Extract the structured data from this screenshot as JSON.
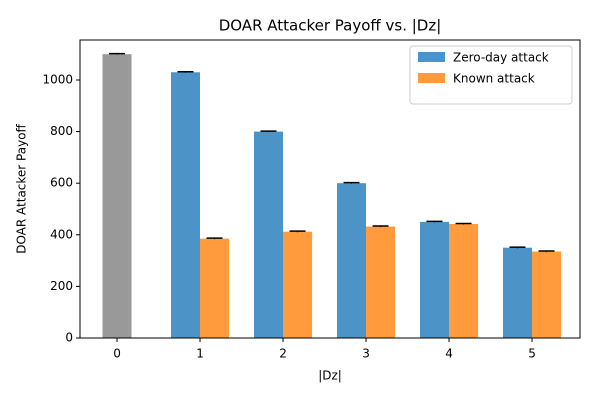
{
  "chart_data": {
    "type": "bar",
    "title": "DOAR Attacker Payoff vs. |Dz|",
    "x_label": "|Dz|",
    "y_label": "DOAR Attacker Payoff",
    "categories": [
      "0",
      "1",
      "2",
      "3",
      "4",
      "5"
    ],
    "baseline_value": 1100,
    "baseline_error": 2,
    "baseline_color": "#999999",
    "series": [
      {
        "name": "Zero-day attack",
        "color": "#4c94c8",
        "values": [
          null,
          1030,
          800,
          600,
          450,
          350
        ],
        "errors": [
          null,
          2,
          2,
          2,
          2,
          2
        ]
      },
      {
        "name": "Known attack",
        "color": "#ff9a3d",
        "values": [
          null,
          385,
          412,
          432,
          442,
          335
        ],
        "errors": [
          null,
          2,
          2,
          2,
          2,
          2
        ]
      }
    ],
    "xlim": [
      -0.446,
      5.578
    ],
    "ylim": [
      0,
      1155
    ],
    "yticks": [
      0,
      200,
      400,
      600,
      800,
      1000
    ],
    "legend": "upper right"
  }
}
